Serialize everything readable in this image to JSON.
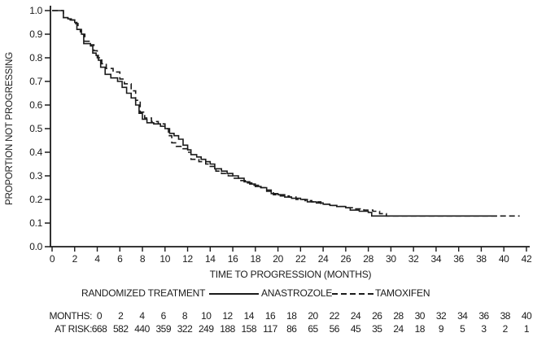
{
  "chart_data": {
    "type": "line",
    "subtype": "kaplan-meier-step",
    "title": "",
    "xlabel": "TIME TO PROGRESSION (MONTHS)",
    "ylabel": "PROPORTION NOT PROGRESSING",
    "xlim": [
      0,
      42.5
    ],
    "ylim": [
      0.0,
      1.0
    ],
    "grid": false,
    "legend_position": "below-axis",
    "x_ticks": [
      0,
      2,
      4,
      6,
      8,
      10,
      12,
      14,
      16,
      18,
      20,
      22,
      24,
      26,
      28,
      30,
      32,
      34,
      36,
      38,
      40,
      42
    ],
    "y_tick_labels": [
      "1.0",
      "0.9",
      "0.8",
      "0.7",
      "0.6",
      "0.5",
      "0.4",
      "0.3",
      "0.2",
      "0.1",
      "0.0"
    ],
    "y_tick_values": [
      1.0,
      0.9,
      0.8,
      0.7,
      0.6,
      0.5,
      0.4,
      0.3,
      0.2,
      0.1,
      0.0
    ],
    "line_color": "#1b1b1b",
    "series": [
      {
        "name": "ANASTROZOLE",
        "style": "solid",
        "points": [
          [
            0,
            1.0
          ],
          [
            0.9,
            1.0
          ],
          [
            1.0,
            0.97
          ],
          [
            1.4,
            0.965
          ],
          [
            1.7,
            0.96
          ],
          [
            2.0,
            0.95
          ],
          [
            2.2,
            0.92
          ],
          [
            2.5,
            0.91
          ],
          [
            2.6,
            0.9
          ],
          [
            2.8,
            0.86
          ],
          [
            3.4,
            0.85
          ],
          [
            3.6,
            0.82
          ],
          [
            3.9,
            0.81
          ],
          [
            4.1,
            0.79
          ],
          [
            4.3,
            0.76
          ],
          [
            4.7,
            0.73
          ],
          [
            5.2,
            0.715
          ],
          [
            5.8,
            0.7
          ],
          [
            6.2,
            0.675
          ],
          [
            6.6,
            0.65
          ],
          [
            7.0,
            0.63
          ],
          [
            7.4,
            0.6
          ],
          [
            7.7,
            0.565
          ],
          [
            8.0,
            0.54
          ],
          [
            8.4,
            0.525
          ],
          [
            9.0,
            0.52
          ],
          [
            9.6,
            0.51
          ],
          [
            10.0,
            0.5
          ],
          [
            10.4,
            0.48
          ],
          [
            10.8,
            0.47
          ],
          [
            11.2,
            0.455
          ],
          [
            11.6,
            0.43
          ],
          [
            12.0,
            0.41
          ],
          [
            12.3,
            0.39
          ],
          [
            12.8,
            0.38
          ],
          [
            13.2,
            0.37
          ],
          [
            13.6,
            0.36
          ],
          [
            14.0,
            0.35
          ],
          [
            14.4,
            0.33
          ],
          [
            15.0,
            0.32
          ],
          [
            15.5,
            0.31
          ],
          [
            16.0,
            0.3
          ],
          [
            16.5,
            0.29
          ],
          [
            17.0,
            0.275
          ],
          [
            17.5,
            0.265
          ],
          [
            18.0,
            0.255
          ],
          [
            18.5,
            0.25
          ],
          [
            19.0,
            0.24
          ],
          [
            19.4,
            0.225
          ],
          [
            20.0,
            0.22
          ],
          [
            20.6,
            0.21
          ],
          [
            21.2,
            0.205
          ],
          [
            22.0,
            0.2
          ],
          [
            22.6,
            0.19
          ],
          [
            23.4,
            0.185
          ],
          [
            24.0,
            0.18
          ],
          [
            24.6,
            0.175
          ],
          [
            25.2,
            0.17
          ],
          [
            26.0,
            0.165
          ],
          [
            26.4,
            0.155
          ],
          [
            27.2,
            0.15
          ],
          [
            28.0,
            0.145
          ],
          [
            28.3,
            0.13
          ],
          [
            39.4,
            0.13
          ]
        ]
      },
      {
        "name": "TAMOXIFEN",
        "style": "dashed",
        "points": [
          [
            0,
            1.0
          ],
          [
            0.9,
            1.0
          ],
          [
            1.0,
            0.97
          ],
          [
            1.6,
            0.96
          ],
          [
            2.0,
            0.945
          ],
          [
            2.3,
            0.92
          ],
          [
            2.6,
            0.9
          ],
          [
            2.9,
            0.87
          ],
          [
            3.4,
            0.855
          ],
          [
            3.7,
            0.83
          ],
          [
            4.0,
            0.8
          ],
          [
            4.4,
            0.775
          ],
          [
            4.8,
            0.755
          ],
          [
            5.4,
            0.74
          ],
          [
            6.0,
            0.71
          ],
          [
            6.4,
            0.69
          ],
          [
            7.0,
            0.66
          ],
          [
            7.4,
            0.62
          ],
          [
            7.8,
            0.57
          ],
          [
            8.2,
            0.545
          ],
          [
            8.8,
            0.53
          ],
          [
            9.4,
            0.52
          ],
          [
            10.0,
            0.5
          ],
          [
            10.3,
            0.47
          ],
          [
            10.6,
            0.44
          ],
          [
            11.0,
            0.425
          ],
          [
            11.6,
            0.415
          ],
          [
            12.0,
            0.4
          ],
          [
            12.3,
            0.37
          ],
          [
            13.0,
            0.36
          ],
          [
            13.6,
            0.35
          ],
          [
            14.0,
            0.34
          ],
          [
            14.5,
            0.32
          ],
          [
            15.0,
            0.31
          ],
          [
            15.6,
            0.3
          ],
          [
            16.0,
            0.29
          ],
          [
            16.6,
            0.28
          ],
          [
            17.2,
            0.27
          ],
          [
            17.8,
            0.26
          ],
          [
            18.4,
            0.25
          ],
          [
            19.0,
            0.235
          ],
          [
            19.6,
            0.22
          ],
          [
            20.2,
            0.215
          ],
          [
            21.0,
            0.21
          ],
          [
            21.6,
            0.2
          ],
          [
            22.4,
            0.195
          ],
          [
            23.0,
            0.19
          ],
          [
            23.8,
            0.18
          ],
          [
            24.6,
            0.175
          ],
          [
            25.4,
            0.17
          ],
          [
            26.0,
            0.165
          ],
          [
            26.8,
            0.16
          ],
          [
            27.6,
            0.155
          ],
          [
            28.4,
            0.15
          ],
          [
            29.0,
            0.14
          ],
          [
            29.6,
            0.13
          ],
          [
            41.4,
            0.13
          ]
        ]
      }
    ]
  },
  "legend": {
    "title": "RANDOMIZED TREATMENT",
    "series1_label": "ANASTROZOLE",
    "series2_label": "TAMOXIFEN"
  },
  "risk_table": {
    "months_label": "MONTHS:",
    "at_risk_label": "AT RISK:",
    "months": [
      0,
      2,
      4,
      6,
      8,
      10,
      12,
      14,
      16,
      18,
      20,
      22,
      24,
      26,
      28,
      30,
      32,
      34,
      36,
      38,
      40
    ],
    "at_risk": [
      668,
      582,
      440,
      359,
      322,
      249,
      188,
      158,
      117,
      86,
      65,
      56,
      45,
      35,
      24,
      18,
      9,
      5,
      3,
      2,
      1
    ]
  },
  "colors": {
    "ink": "#1b1b1b",
    "background": "#ffffff"
  }
}
